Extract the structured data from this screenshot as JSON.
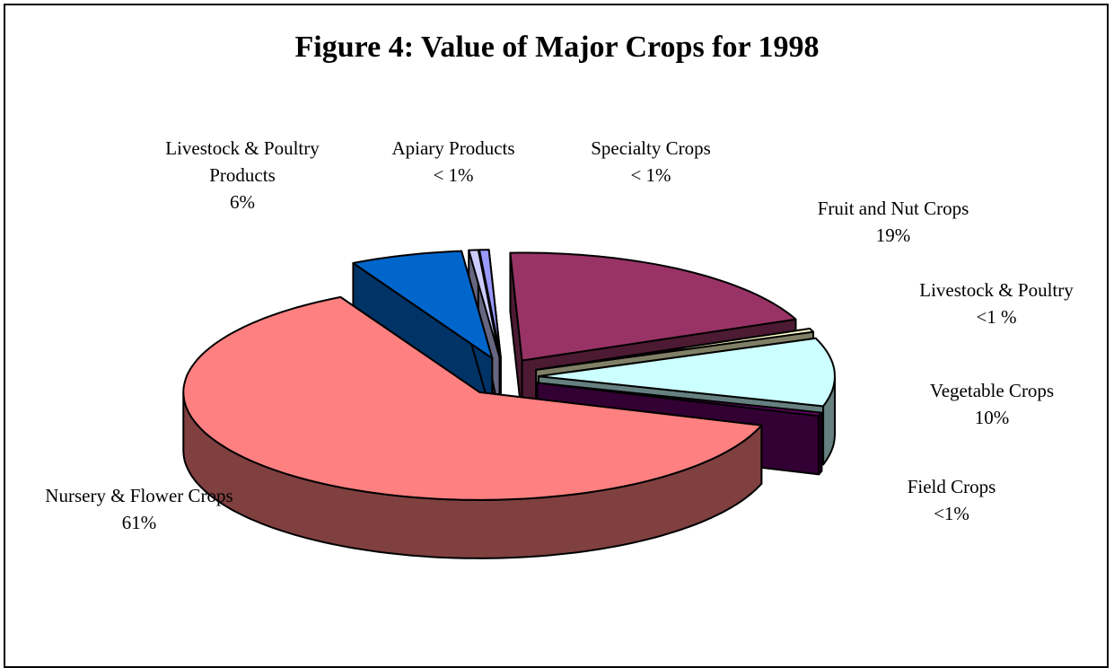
{
  "chart_data": {
    "type": "pie3d",
    "title": "Figure 4: Value of Major Crops for 1998",
    "categories": [
      "Livestock & Poultry Products",
      "Apiary Products",
      "Specialty Crops",
      "Fruit and Nut Crops",
      "Livestock & Poultry",
      "Vegetable Crops",
      "Field Crops",
      "Nursery & Flower Crops"
    ],
    "values": [
      6,
      0.5,
      0.5,
      19,
      0.5,
      10,
      0.5,
      61
    ],
    "value_labels": [
      "6%",
      "< 1%",
      "< 1%",
      "19%",
      "<1 %",
      "10%",
      "<1%",
      "61%"
    ],
    "colors": [
      "#0066cc",
      "#ccccff",
      "#9999ff",
      "#993366",
      "#ffffcc",
      "#ccffff",
      "#660066",
      "#ff8080"
    ]
  }
}
